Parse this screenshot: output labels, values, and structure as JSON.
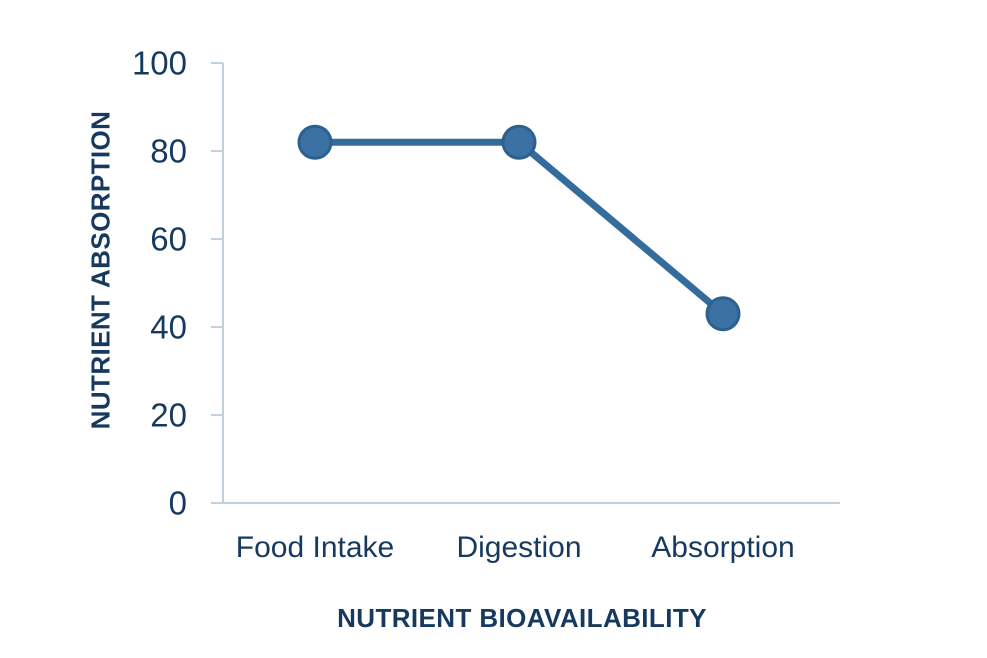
{
  "chart_data": {
    "type": "line",
    "xlabel": "NUTRIENT BIOAVAILABILITY",
    "ylabel": "NUTRIENT ABSORPTION",
    "categories": [
      "Food Intake",
      "Digestion",
      "Absorption"
    ],
    "series": [
      {
        "name": "Nutrient Absorption",
        "values": [
          82,
          82,
          43
        ]
      }
    ],
    "ylim": [
      0,
      100
    ],
    "yticks": [
      0,
      20,
      40,
      60,
      80,
      100
    ],
    "grid": false,
    "legend": false,
    "marker_style": "filled-circle",
    "colors": {
      "line": "#356C9E",
      "marker_fill": "#3B72A3",
      "marker_stroke": "#2B608F",
      "axis_line": "#BFD2DD",
      "text": "#163A5F"
    }
  }
}
